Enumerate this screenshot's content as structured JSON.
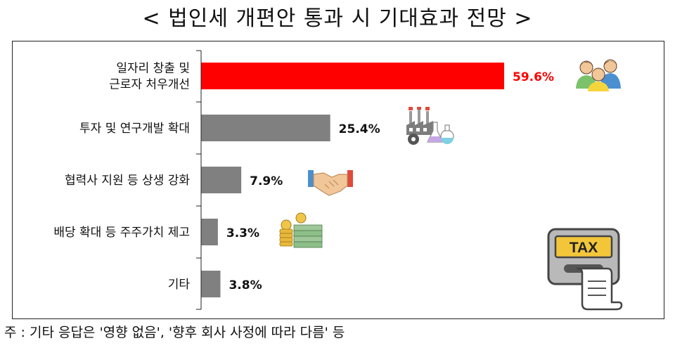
{
  "header": {
    "title": "< 법인세 개편안 통과 시 기대효과 전망 >"
  },
  "footnote": "주 : 기타 응답은 '영향 없음', '향후 회사 사정에 따라 다름' 등",
  "chart_data": {
    "type": "bar",
    "orientation": "horizontal",
    "title": "< 법인세 개편안 통과 시 기대효과 전망 >",
    "categories": [
      [
        "일자리 창출 및",
        "근로자 처우개선"
      ],
      [
        "투자 및 연구개발 확대"
      ],
      [
        "협력사 지원 등 상생 강화"
      ],
      [
        "배당 확대 등 주주가치 제고"
      ],
      [
        "기타"
      ]
    ],
    "values": [
      59.6,
      25.4,
      7.9,
      3.3,
      3.8
    ],
    "value_labels": [
      "59.6%",
      "25.4%",
      "7.9%",
      "3.3%",
      "3.8%"
    ],
    "xlim": [
      0,
      60
    ],
    "colors": [
      "#ff0000",
      "#808080",
      "#808080",
      "#808080",
      "#808080"
    ],
    "label_colors": [
      "#ff0000",
      "#111111",
      "#111111",
      "#111111",
      "#111111"
    ],
    "icons": [
      "people-icon",
      "factory-lab-icon",
      "handshake-icon",
      "money-stack-icon",
      "tax-receipt-icon"
    ],
    "tax_label": "TAX"
  }
}
